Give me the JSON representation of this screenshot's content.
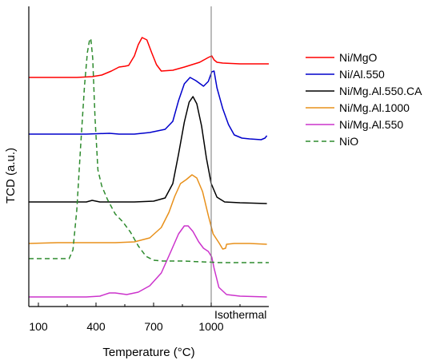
{
  "chart_data": {
    "type": "line",
    "xlabel": "Temperature (°C)",
    "ylabel": "TCD (a.u.)",
    "xlim": [
      50,
      1300
    ],
    "x_ticks": [
      100,
      400,
      700,
      1000
    ],
    "x_tick_labels": [
      "100",
      "400",
      "700",
      "1000"
    ],
    "isothermal_x": 1000,
    "isothermal_label": "Isothermal",
    "legend_position": "right",
    "series": [
      {
        "name": "Ni/MgO",
        "color": "#ff0000",
        "dash": "solid",
        "points": [
          [
            50,
            89
          ],
          [
            200,
            89
          ],
          [
            300,
            89
          ],
          [
            380,
            88
          ],
          [
            430,
            86
          ],
          [
            480,
            81
          ],
          [
            520,
            76
          ],
          [
            550,
            75
          ],
          [
            570,
            74
          ],
          [
            600,
            62
          ],
          [
            620,
            48
          ],
          [
            640,
            39
          ],
          [
            665,
            42
          ],
          [
            690,
            58
          ],
          [
            715,
            73
          ],
          [
            740,
            81
          ],
          [
            800,
            80
          ],
          [
            860,
            76
          ],
          [
            940,
            70
          ],
          [
            985,
            64
          ],
          [
            1003,
            62
          ],
          [
            1015,
            67
          ],
          [
            1030,
            70
          ],
          [
            1060,
            71
          ],
          [
            1150,
            72
          ],
          [
            1200,
            72
          ],
          [
            1300,
            72
          ]
        ]
      },
      {
        "name": "Ni/Al.550",
        "color": "#0000cc",
        "dash": "solid",
        "points": [
          [
            50,
            160
          ],
          [
            200,
            160
          ],
          [
            350,
            160
          ],
          [
            470,
            159
          ],
          [
            520,
            160
          ],
          [
            600,
            160
          ],
          [
            680,
            158
          ],
          [
            760,
            154
          ],
          [
            800,
            144
          ],
          [
            830,
            118
          ],
          [
            860,
            97
          ],
          [
            890,
            89
          ],
          [
            920,
            93
          ],
          [
            960,
            100
          ],
          [
            985,
            94
          ],
          [
            1003,
            82
          ],
          [
            1015,
            81
          ],
          [
            1030,
            102
          ],
          [
            1060,
            128
          ],
          [
            1090,
            148
          ],
          [
            1120,
            161
          ],
          [
            1160,
            165
          ],
          [
            1200,
            166
          ],
          [
            1260,
            167
          ],
          [
            1280,
            165
          ],
          [
            1290,
            162
          ]
        ]
      },
      {
        "name": "Ni/Mg.Al.550.CA",
        "color": "#000000",
        "dash": "solid",
        "points": [
          [
            50,
            245
          ],
          [
            200,
            245
          ],
          [
            350,
            245
          ],
          [
            380,
            243
          ],
          [
            420,
            245
          ],
          [
            500,
            245
          ],
          [
            600,
            245
          ],
          [
            700,
            244
          ],
          [
            760,
            240
          ],
          [
            800,
            222
          ],
          [
            830,
            185
          ],
          [
            860,
            145
          ],
          [
            885,
            120
          ],
          [
            905,
            113
          ],
          [
            925,
            122
          ],
          [
            950,
            150
          ],
          [
            975,
            190
          ],
          [
            1000,
            222
          ],
          [
            1030,
            239
          ],
          [
            1070,
            245
          ],
          [
            1150,
            246
          ],
          [
            1290,
            247
          ]
        ]
      },
      {
        "name": "Ni/Mg.Al.1000",
        "color": "#e8901a",
        "dash": "solid",
        "points": [
          [
            50,
            297
          ],
          [
            200,
            296
          ],
          [
            350,
            296
          ],
          [
            500,
            296
          ],
          [
            600,
            295
          ],
          [
            680,
            290
          ],
          [
            740,
            277
          ],
          [
            780,
            258
          ],
          [
            810,
            238
          ],
          [
            840,
            222
          ],
          [
            870,
            217
          ],
          [
            900,
            211
          ],
          [
            925,
            215
          ],
          [
            955,
            232
          ],
          [
            985,
            262
          ],
          [
            1010,
            285
          ],
          [
            1040,
            296
          ],
          [
            1060,
            304
          ],
          [
            1075,
            303
          ],
          [
            1080,
            298
          ],
          [
            1120,
            297
          ],
          [
            1200,
            297
          ],
          [
            1290,
            298
          ]
        ]
      },
      {
        "name": "Ni/Mg.Al.550",
        "color": "#cc33cc",
        "dash": "solid",
        "points": [
          [
            50,
            364
          ],
          [
            200,
            364
          ],
          [
            350,
            364
          ],
          [
            420,
            363
          ],
          [
            470,
            359
          ],
          [
            500,
            359
          ],
          [
            560,
            361
          ],
          [
            620,
            358
          ],
          [
            680,
            350
          ],
          [
            740,
            334
          ],
          [
            790,
            307
          ],
          [
            830,
            285
          ],
          [
            860,
            275
          ],
          [
            880,
            275
          ],
          [
            905,
            282
          ],
          [
            935,
            295
          ],
          [
            960,
            303
          ],
          [
            985,
            307
          ],
          [
            1003,
            314
          ],
          [
            1015,
            328
          ],
          [
            1040,
            352
          ],
          [
            1080,
            361
          ],
          [
            1150,
            363
          ],
          [
            1290,
            364
          ]
        ]
      },
      {
        "name": "NiO",
        "color": "#2e8b2e",
        "dash": "6,4",
        "points": [
          [
            50,
            316
          ],
          [
            150,
            316
          ],
          [
            260,
            316
          ],
          [
            280,
            305
          ],
          [
            300,
            255
          ],
          [
            320,
            175
          ],
          [
            340,
            100
          ],
          [
            355,
            58
          ],
          [
            365,
            44
          ],
          [
            373,
            40
          ],
          [
            383,
            65
          ],
          [
            395,
            140
          ],
          [
            410,
            205
          ],
          [
            430,
            225
          ],
          [
            460,
            242
          ],
          [
            500,
            260
          ],
          [
            540,
            270
          ],
          [
            580,
            283
          ],
          [
            620,
            300
          ],
          [
            660,
            313
          ],
          [
            700,
            318
          ],
          [
            750,
            319
          ],
          [
            850,
            319
          ],
          [
            950,
            320
          ],
          [
            1050,
            321
          ],
          [
            1150,
            321
          ],
          [
            1300,
            321
          ]
        ]
      }
    ]
  }
}
